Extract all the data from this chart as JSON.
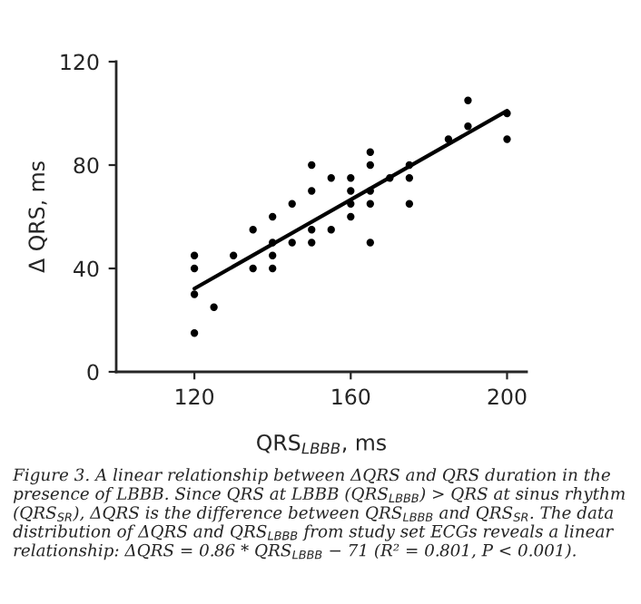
{
  "chart_data": {
    "type": "scatter",
    "xlabel": "QRS$_{LBBB}$, ms",
    "ylabel": "Δ QRS, ms",
    "xlim": [
      100,
      205
    ],
    "xticks": [
      120,
      160,
      200
    ],
    "ylim": [
      0,
      120
    ],
    "yticks": [
      0,
      40,
      80,
      120
    ],
    "grid": false,
    "series": [
      {
        "marker": "circle",
        "color": "#000000",
        "x": [
          120,
          120,
          120,
          120,
          125,
          130,
          135,
          135,
          140,
          140,
          140,
          140,
          145,
          145,
          150,
          150,
          150,
          150,
          155,
          155,
          160,
          160,
          160,
          160,
          165,
          165,
          165,
          165,
          165,
          170,
          175,
          175,
          175,
          185,
          190,
          190,
          200,
          200
        ],
        "values": [
          45,
          40,
          30,
          15,
          25,
          45,
          55,
          40,
          60,
          50,
          45,
          40,
          65,
          50,
          80,
          70,
          55,
          50,
          75,
          55,
          75,
          70,
          65,
          60,
          85,
          80,
          70,
          65,
          50,
          75,
          80,
          75,
          65,
          90,
          105,
          95,
          100,
          90
        ]
      },
      {
        "type": "line",
        "color": "#000000",
        "x": [
          120,
          200
        ],
        "values": [
          32.2,
          101
        ]
      }
    ],
    "annotations": [
      "Figure 3. A linear relationship between ΔQRS and QRS duration in the presence of LBBB. Since QRS at LBBB (QRS$_{LBBB}$) > QRS at sinus rhythm (QRS$_{SR}$), ΔQRS is the difference between QRS$_{LBBB}$ and QRS$_{SR}$. The data distribution of ΔQRS and QRS$_{LBBB}$ from study set ECGs reveals a linear relationship: ΔQRS = 0.86 * QRS$_{LBBB}$ − 71 (R² = 0.801, P < 0.001)."
    ]
  }
}
